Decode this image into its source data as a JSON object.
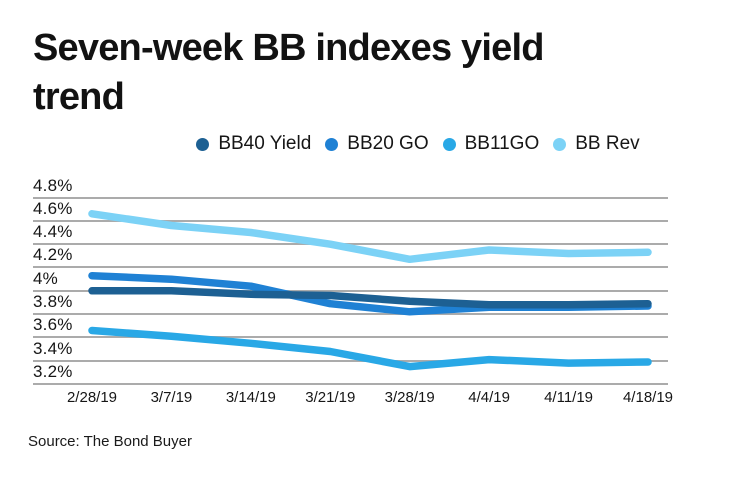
{
  "chart_data": {
    "type": "line",
    "title": "Seven-week BB indexes yield trend",
    "source": "Source: The Bond Buyer",
    "x_labels": [
      "2/28/19",
      "3/7/19",
      "3/14/19",
      "3/21/19",
      "3/28/19",
      "4/4/19",
      "4/11/19",
      "4/18/19"
    ],
    "y_ticks": [
      {
        "label": "4.8%",
        "value": 4.8
      },
      {
        "label": "4.6%",
        "value": 4.6
      },
      {
        "label": "4.4%",
        "value": 4.4
      },
      {
        "label": "4.2%",
        "value": 4.2
      },
      {
        "label": "4%",
        "value": 4.0
      },
      {
        "label": "3.8%",
        "value": 3.8
      },
      {
        "label": "3.6%",
        "value": 3.6
      },
      {
        "label": "3.4%",
        "value": 3.4
      },
      {
        "label": "3.2%",
        "value": 3.2
      }
    ],
    "ylim": [
      3.2,
      4.8
    ],
    "grid": true,
    "legend_position": "top",
    "series": [
      {
        "name": "BB40 Yield",
        "color": "#1d6093",
        "values": [
          4.0,
          4.0,
          3.97,
          3.96,
          3.91,
          3.88,
          3.88,
          3.89
        ]
      },
      {
        "name": "BB20 GO",
        "color": "#1f81d4",
        "values": [
          4.13,
          4.1,
          4.04,
          3.89,
          3.82,
          3.86,
          3.86,
          3.87
        ]
      },
      {
        "name": "BB11GO",
        "color": "#29a8e6",
        "values": [
          3.66,
          3.61,
          3.55,
          3.48,
          3.35,
          3.41,
          3.38,
          3.39
        ]
      },
      {
        "name": "BB Rev",
        "color": "#7cd2f6",
        "values": [
          4.66,
          4.56,
          4.5,
          4.4,
          4.27,
          4.35,
          4.32,
          4.33
        ]
      }
    ],
    "colors": {
      "grid": "#8f8f8f",
      "text": "#161616"
    }
  }
}
